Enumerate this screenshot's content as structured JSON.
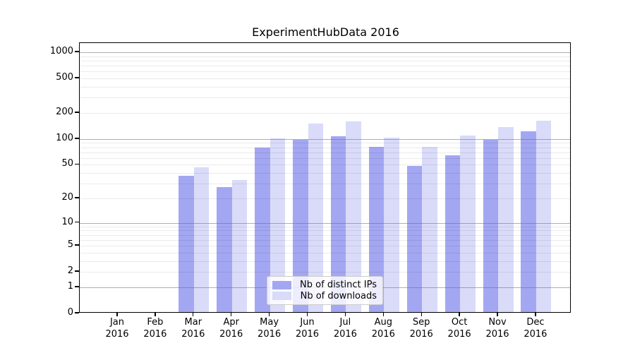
{
  "title": "ExperimentHubData 2016",
  "chart_data": {
    "type": "bar",
    "title": "ExperimentHubData 2016",
    "x_months": [
      "Jan",
      "Feb",
      "Mar",
      "Apr",
      "May",
      "Jun",
      "Jul",
      "Aug",
      "Sep",
      "Oct",
      "Nov",
      "Dec"
    ],
    "x_year": "2016",
    "y_scale": "log1p",
    "y_ticks": [
      0,
      1,
      2,
      5,
      10,
      20,
      50,
      100,
      200,
      500,
      1000
    ],
    "y_major_gridlines": [
      1,
      10,
      100,
      1000
    ],
    "ylim": [
      0,
      1400
    ],
    "grid": true,
    "legend_position": "inside-bottom-center",
    "series": [
      {
        "name": "Nb of distinct IPs",
        "color": "#a3a7f2",
        "values": [
          0,
          0,
          36,
          26,
          77,
          95,
          104,
          78,
          47,
          62,
          94,
          119
        ]
      },
      {
        "name": "Nb of downloads",
        "color": "#d9dbf9",
        "values": [
          0,
          0,
          45,
          32,
          97,
          144,
          154,
          100,
          78,
          105,
          133,
          156
        ]
      }
    ]
  }
}
